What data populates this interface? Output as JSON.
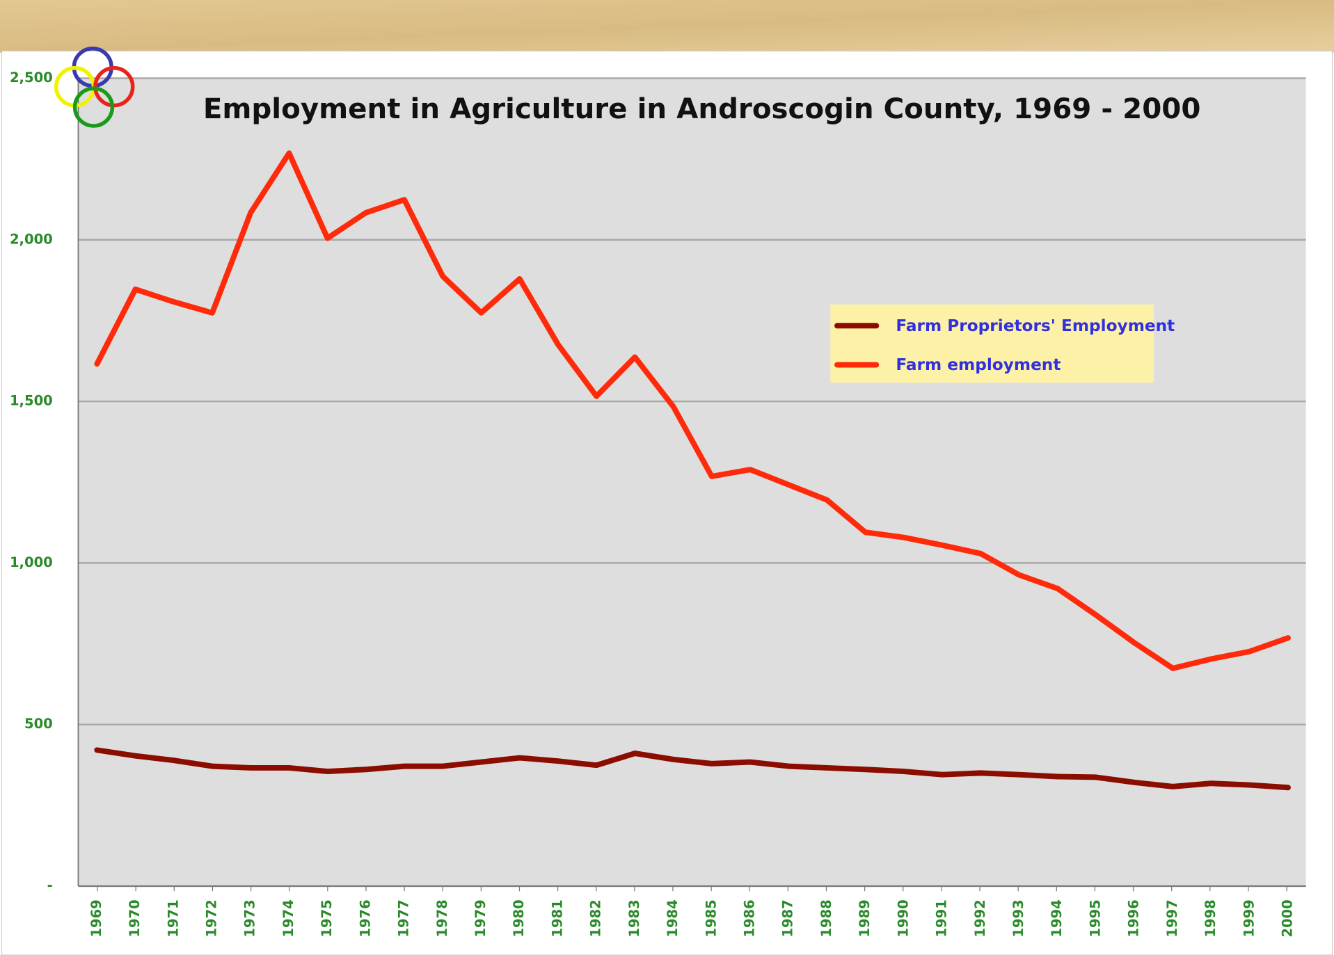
{
  "chart_data": {
    "type": "line",
    "title": "Employment in Agriculture in Androscogin County, 1969 - 2000",
    "categories": [
      "1969",
      "1970",
      "1971",
      "1972",
      "1973",
      "1974",
      "1975",
      "1976",
      "1977",
      "1978",
      "1979",
      "1980",
      "1981",
      "1982",
      "1983",
      "1984",
      "1985",
      "1986",
      "1987",
      "1988",
      "1989",
      "1990",
      "1991",
      "1992",
      "1993",
      "1994",
      "1995",
      "1996",
      "1997",
      "1998",
      "1999",
      "2000"
    ],
    "series": [
      {
        "name": "Farm Proprietors' Employment",
        "color": "#8b0d00",
        "values": [
          421,
          403,
          389,
          371,
          366,
          366,
          355,
          361,
          371,
          371,
          384,
          397,
          387,
          374,
          411,
          392,
          379,
          384,
          371,
          366,
          361,
          355,
          345,
          350,
          345,
          339,
          337,
          321,
          308,
          318,
          313,
          305
        ]
      },
      {
        "name": "Farm employment",
        "color": "#ff2a0a",
        "values": [
          1616,
          1847,
          1808,
          1774,
          2084,
          2268,
          2005,
          2084,
          2124,
          1887,
          1774,
          1879,
          1676,
          1516,
          1637,
          1484,
          1268,
          1289,
          1242,
          1195,
          1095,
          1079,
          1055,
          1029,
          963,
          921,
          839,
          753,
          674,
          703,
          726,
          768
        ]
      }
    ],
    "ylim": [
      0,
      2500
    ],
    "yticks": [
      {
        "value": 0,
        "label": "-"
      },
      500,
      {
        "value": 1000,
        "label": "1,000"
      },
      {
        "value": 1500,
        "label": "1,500"
      },
      {
        "value": 2000,
        "label": "2,000"
      },
      {
        "value": 2500,
        "label": "2,500"
      }
    ],
    "grid": true,
    "legend": "right"
  }
}
